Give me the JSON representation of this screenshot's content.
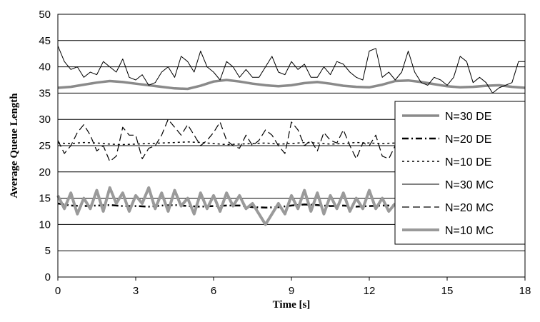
{
  "chart_data": {
    "type": "line",
    "xlabel": "Time [s]",
    "ylabel": "Average Queue Length",
    "xlim": [
      0,
      18
    ],
    "ylim": [
      0,
      50
    ],
    "xticks": [
      "0",
      "3",
      "6",
      "9",
      "12",
      "15",
      "18"
    ],
    "yticks": [
      "0",
      "5",
      "10",
      "15",
      "20",
      "25",
      "30",
      "35",
      "40",
      "45",
      "50"
    ],
    "grid": "horizontal",
    "legend_position": "right",
    "series": [
      {
        "name": "N=30 DE",
        "style": "thick-grey",
        "x": [
          0,
          0.5,
          1,
          1.5,
          2,
          2.5,
          3,
          3.5,
          4,
          4.5,
          5,
          5.5,
          6,
          6.5,
          7,
          7.5,
          8,
          8.5,
          9,
          9.5,
          10,
          10.5,
          11,
          11.5,
          12,
          12.5,
          13,
          13.5,
          14,
          14.5,
          15,
          15.5,
          16,
          16.5,
          17,
          17.5,
          18
        ],
        "y": [
          36,
          36.2,
          36.6,
          37,
          37.3,
          37.1,
          36.8,
          36.5,
          36.2,
          35.9,
          35.8,
          36.4,
          37.2,
          37.5,
          37.2,
          36.8,
          36.5,
          36.3,
          36.5,
          36.9,
          37.1,
          36.8,
          36.4,
          36.2,
          36.1,
          36.6,
          37.3,
          37.4,
          37.1,
          36.7,
          36.3,
          36.1,
          36.2,
          36.4,
          36.5,
          36.2,
          36
        ]
      },
      {
        "name": "N=20 DE",
        "style": "dash-dot",
        "x": [
          0,
          0.5,
          1,
          1.5,
          2,
          2.5,
          3,
          3.5,
          4,
          4.5,
          5,
          5.5,
          6,
          6.5,
          7,
          7.5,
          8,
          8.5,
          9,
          9.5,
          10,
          10.5,
          11,
          11.5,
          12,
          12.5,
          13
        ],
        "y": [
          14,
          13.6,
          13.5,
          13.6,
          13.7,
          13.5,
          13.5,
          13.4,
          13.6,
          13.7,
          13.5,
          13.4,
          13.5,
          13.6,
          13.6,
          13.3,
          13.2,
          13.3,
          13.6,
          13.8,
          13.7,
          13.5,
          13.6,
          13.4,
          13.5,
          13.6,
          13.6
        ]
      },
      {
        "name": "N=10 DE",
        "style": "dotted",
        "x": [
          0,
          0.5,
          1,
          1.5,
          2,
          2.5,
          3,
          3.5,
          4,
          4.5,
          5,
          5.5,
          6,
          6.5,
          7,
          7.5,
          8,
          8.5,
          9,
          9.5,
          10,
          10.5,
          11,
          11.5,
          12,
          12.5,
          13
        ],
        "y": [
          25.5,
          25.4,
          25.6,
          25.5,
          25.3,
          25.2,
          25.3,
          25.4,
          25.5,
          25.6,
          25.7,
          25.6,
          25.4,
          25.2,
          25.3,
          25.4,
          25.5,
          25.3,
          25.4,
          25.6,
          25.5,
          25.3,
          25.4,
          25.6,
          25.5,
          25.4,
          25.5
        ]
      },
      {
        "name": "N=30 MC",
        "style": "thin-black",
        "x": [
          0,
          0.25,
          0.5,
          0.75,
          1,
          1.25,
          1.5,
          1.75,
          2,
          2.25,
          2.5,
          2.75,
          3,
          3.25,
          3.5,
          3.75,
          4,
          4.25,
          4.5,
          4.75,
          5,
          5.25,
          5.5,
          5.75,
          6,
          6.25,
          6.5,
          6.75,
          7,
          7.25,
          7.5,
          7.75,
          8,
          8.25,
          8.5,
          8.75,
          9,
          9.25,
          9.5,
          9.75,
          10,
          10.25,
          10.5,
          10.75,
          11,
          11.25,
          11.5,
          11.75,
          12,
          12.25,
          12.5,
          12.75,
          13,
          13.25,
          13.5,
          13.75,
          14,
          14.25,
          14.5,
          14.75,
          15,
          15.25,
          15.5,
          15.75,
          16,
          16.25,
          16.5,
          16.75,
          17,
          17.25,
          17.5,
          17.75,
          18
        ],
        "y": [
          44,
          41,
          39.5,
          40,
          38,
          39,
          38.5,
          41,
          40,
          39,
          41.5,
          38,
          37.5,
          38.5,
          36.5,
          37,
          39,
          40,
          38,
          42,
          41,
          39,
          43,
          40,
          39,
          37.5,
          41,
          40,
          38,
          39.5,
          38,
          38,
          40,
          42,
          39,
          38.5,
          41,
          39.5,
          40.5,
          38,
          38,
          40,
          38.5,
          41,
          40.5,
          39,
          38,
          37.5,
          43,
          43.5,
          38,
          39,
          37.5,
          39,
          43,
          39,
          37,
          36.5,
          38,
          37.5,
          36.5,
          38,
          42,
          41,
          37,
          38,
          37,
          35,
          36,
          36.5,
          37,
          41,
          41
        ]
      },
      {
        "name": "N=20 MC",
        "style": "long-dash",
        "x": [
          0,
          0.25,
          0.5,
          0.75,
          1,
          1.25,
          1.5,
          1.75,
          2,
          2.25,
          2.5,
          2.75,
          3,
          3.25,
          3.5,
          3.75,
          4,
          4.25,
          4.5,
          4.75,
          5,
          5.25,
          5.5,
          5.75,
          6,
          6.25,
          6.5,
          6.75,
          7,
          7.25,
          7.5,
          7.75,
          8,
          8.25,
          8.5,
          8.75,
          9,
          9.25,
          9.5,
          9.75,
          10,
          10.25,
          10.5,
          10.75,
          11,
          11.25,
          11.5,
          11.75,
          12,
          12.25,
          12.5,
          12.75,
          13
        ],
        "y": [
          26,
          23.5,
          25,
          27.5,
          29,
          27,
          24,
          25,
          22,
          23,
          28.5,
          27,
          27,
          22.5,
          24.5,
          25,
          27,
          30,
          28.5,
          27,
          29,
          27,
          25,
          26,
          27.5,
          29.5,
          26,
          25,
          24.5,
          27,
          25,
          26,
          28,
          27,
          25,
          23.5,
          29.5,
          28,
          25,
          26,
          24,
          27.5,
          26,
          25.5,
          28,
          25,
          22.5,
          25.5,
          25,
          27,
          23,
          22.5,
          25
        ]
      },
      {
        "name": "N=10 MC",
        "style": "thick-grey-zigzag",
        "x": [
          0,
          0.25,
          0.5,
          0.75,
          1,
          1.25,
          1.5,
          1.75,
          2,
          2.25,
          2.5,
          2.75,
          3,
          3.25,
          3.5,
          3.75,
          4,
          4.25,
          4.5,
          4.75,
          5,
          5.25,
          5.5,
          5.75,
          6,
          6.25,
          6.5,
          6.75,
          7,
          7.25,
          7.5,
          7.75,
          8,
          8.25,
          8.5,
          8.75,
          9,
          9.25,
          9.5,
          9.75,
          10,
          10.25,
          10.5,
          10.75,
          11,
          11.25,
          11.5,
          11.75,
          12,
          12.25,
          12.5,
          12.75,
          13
        ],
        "y": [
          15.5,
          13,
          16,
          12,
          15,
          13,
          16.5,
          12.5,
          17,
          14,
          16,
          12.5,
          15.5,
          14,
          17,
          13,
          16,
          12.5,
          16.5,
          13.5,
          15,
          12,
          16,
          13,
          15.5,
          12.5,
          16,
          13.5,
          15.5,
          13,
          14,
          12,
          10,
          12,
          14,
          12,
          15.5,
          13,
          16.5,
          12.5,
          16,
          12,
          15.5,
          13,
          16,
          12.5,
          15,
          13,
          16.5,
          13,
          15,
          12.5,
          14
        ]
      }
    ]
  }
}
